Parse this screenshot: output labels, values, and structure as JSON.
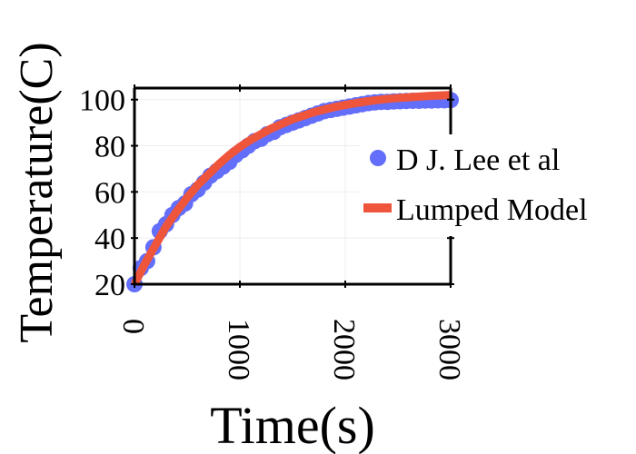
{
  "chart_data": {
    "type": "line",
    "xlabel": "Time(s)",
    "ylabel": "Temperature(C)",
    "xlim": [
      0,
      3000
    ],
    "ylim": [
      20,
      105
    ],
    "xticks": [
      "0",
      "1000",
      "2000",
      "3000"
    ],
    "yticks": [
      "20",
      "40",
      "60",
      "80",
      "100"
    ],
    "grid": true,
    "legend_position": "right",
    "series": [
      {
        "name": "D J. Lee et al",
        "kind": "markers",
        "color": "#636efa",
        "x": [
          0,
          60,
          120,
          180,
          240,
          300,
          360,
          420,
          480,
          540,
          600,
          660,
          720,
          780,
          840,
          900,
          960,
          1020,
          1080,
          1140,
          1200,
          1260,
          1320,
          1380,
          1440,
          1500,
          1560,
          1620,
          1680,
          1740,
          1800,
          1860,
          1920,
          1980,
          2040,
          2100,
          2160,
          2220,
          2280,
          2340,
          2400,
          2460,
          2520,
          2580,
          2640,
          2700,
          2760,
          2820,
          2880,
          2940,
          3000
        ],
        "y": [
          20,
          27,
          30,
          36,
          43,
          46,
          50,
          53,
          55,
          59,
          61,
          64,
          67,
          69,
          71,
          73,
          76,
          78,
          80,
          82,
          83,
          85,
          86,
          88,
          89,
          90,
          91,
          92,
          93,
          94,
          95,
          95.5,
          96,
          96.5,
          97,
          97.5,
          98,
          98.5,
          98.8,
          99,
          99,
          99.2,
          99.3,
          99.4,
          99.5,
          99.5,
          99.6,
          99.6,
          99.7,
          99.7,
          99.8
        ]
      },
      {
        "name": "Lumped Model",
        "kind": "line",
        "color": "#ef553b",
        "x": [
          0,
          100,
          200,
          300,
          400,
          500,
          600,
          700,
          800,
          900,
          1000,
          1100,
          1200,
          1300,
          1400,
          1500,
          1600,
          1700,
          1800,
          1900,
          2000,
          2100,
          2200,
          2300,
          2400,
          2500,
          2600,
          2700,
          2800,
          2900,
          3000
        ],
        "y": [
          20,
          29,
          37,
          45,
          51.5,
          57.5,
          63,
          67.5,
          72,
          76,
          79.5,
          82.5,
          85,
          87.5,
          89.5,
          91.5,
          93,
          94.5,
          95.7,
          96.8,
          97.7,
          98.5,
          99.2,
          99.8,
          100.3,
          100.7,
          101,
          101.3,
          101.6,
          101.8,
          102
        ]
      }
    ]
  }
}
